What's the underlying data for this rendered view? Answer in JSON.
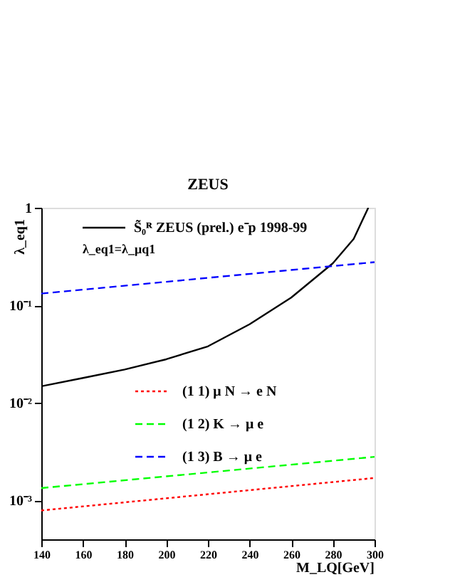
{
  "chart_data": {
    "type": "line",
    "title": "ZEUS",
    "xlabel": "M_LQ[GeV]",
    "ylabel": "λ_eq1",
    "log": "y",
    "grid": false,
    "legend": "top left",
    "line_style": "solid",
    "marker": "none",
    "xlim": [
      140,
      300
    ],
    "xticks": [
      140,
      160,
      180,
      200,
      220,
      240,
      260,
      280,
      300
    ],
    "ylim": [
      0.0004,
      1
    ],
    "yticks": [
      {
        "value": 0.001,
        "label": "10⁻³"
      },
      {
        "value": 0.01,
        "label": "10⁻²"
      },
      {
        "value": 0.1,
        "label": "10⁻¹"
      },
      1
    ],
    "annotations": [
      "λ_eq1=λ_μq1"
    ],
    "series": [
      {
        "name": "S̃₀ᴿ ZEUS (prel.) e⁻p 1998-99",
        "color": "#000000",
        "x": [
          140,
          160,
          180,
          200,
          220,
          240,
          260,
          280,
          290,
          297
        ],
        "values": [
          0.0148,
          0.018,
          0.022,
          0.028,
          0.038,
          0.064,
          0.12,
          0.27,
          0.48,
          1.0
        ]
      },
      {
        "name": "(1 1) μ N → e N",
        "color": "#ff0000",
        "line_style": "dotted",
        "x": [
          140,
          300
        ],
        "values": [
          0.00079,
          0.0017
        ]
      },
      {
        "name": "(1 2) K → μ e",
        "color": "#00ff00",
        "line_style": "dashed",
        "x": [
          140,
          300
        ],
        "values": [
          0.00134,
          0.0028
        ]
      },
      {
        "name": "(1 3) B → μ e",
        "color": "#0000ff",
        "line_style": "dashed",
        "x": [
          140,
          300
        ],
        "values": [
          0.132,
          0.277
        ]
      }
    ]
  }
}
